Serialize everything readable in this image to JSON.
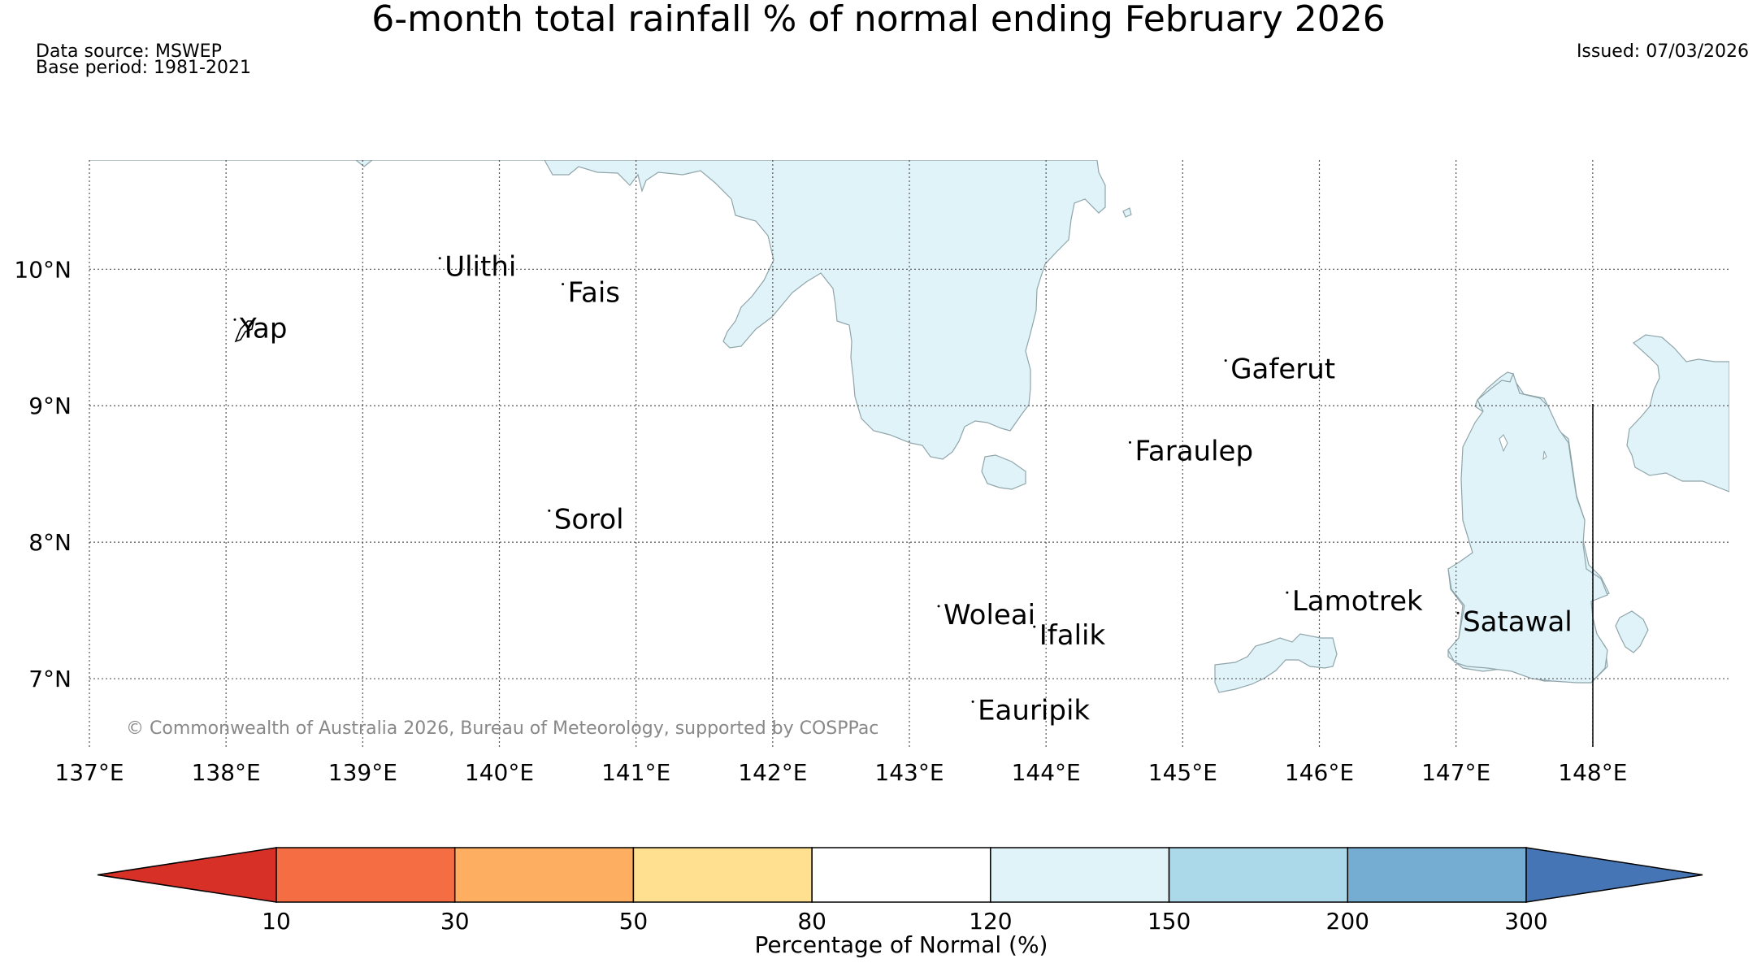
{
  "title": "6-month total rainfall % of normal ending February 2026",
  "data_source": "Data source: MSWEP",
  "base_period": "Base period: 1981-2021",
  "issued": "Issued: 07/03/2026",
  "copyright": "© Commonwealth of Australia 2026, Bureau of Meteorology, supported by COSPPac",
  "chart_data": {
    "type": "map",
    "x_range": [
      137,
      149
    ],
    "y_range": [
      6.5,
      10.8
    ],
    "lon_ticks": [
      137,
      138,
      139,
      140,
      141,
      142,
      143,
      144,
      145,
      146,
      147,
      148
    ],
    "lon_tick_labels": [
      "137°E",
      "138°E",
      "139°E",
      "140°E",
      "141°E",
      "142°E",
      "143°E",
      "144°E",
      "145°E",
      "146°E",
      "147°E",
      "148°E"
    ],
    "lat_ticks": [
      7,
      8,
      9,
      10
    ],
    "lat_tick_labels": [
      "7°N",
      "8°N",
      "9°N",
      "10°N"
    ],
    "places": [
      {
        "name": "Yap",
        "lon": 138.1,
        "lat": 9.5
      },
      {
        "name": "Ulithi",
        "lon": 139.6,
        "lat": 9.95
      },
      {
        "name": "Fais",
        "lon": 140.5,
        "lat": 9.76
      },
      {
        "name": "Sorol",
        "lon": 140.4,
        "lat": 8.1
      },
      {
        "name": "Gaferut",
        "lon": 145.35,
        "lat": 9.2
      },
      {
        "name": "Faraulep",
        "lon": 144.65,
        "lat": 8.6
      },
      {
        "name": "Woleai",
        "lon": 143.25,
        "lat": 7.4
      },
      {
        "name": "Ifalik",
        "lon": 143.95,
        "lat": 7.25
      },
      {
        "name": "Lamotrek",
        "lon": 145.8,
        "lat": 7.5
      },
      {
        "name": "Satawal",
        "lon": 147.05,
        "lat": 7.35
      },
      {
        "name": "Eauripik",
        "lon": 143.5,
        "lat": 6.7
      }
    ],
    "colorbar": {
      "label": "Percentage of Normal (%)",
      "boundaries": [
        10,
        30,
        50,
        80,
        120,
        150,
        200,
        300
      ],
      "tick_labels": [
        "10",
        "30",
        "50",
        "80",
        "120",
        "150",
        "200",
        "300"
      ],
      "colors": [
        "#d73027",
        "#f46d43",
        "#fdae61",
        "#fee090",
        "#ffffff",
        "#e0f3f8",
        "#abd9e9",
        "#74add1",
        "#4575b4"
      ],
      "extend": "both"
    },
    "regions_color_class": "120-150"
  }
}
